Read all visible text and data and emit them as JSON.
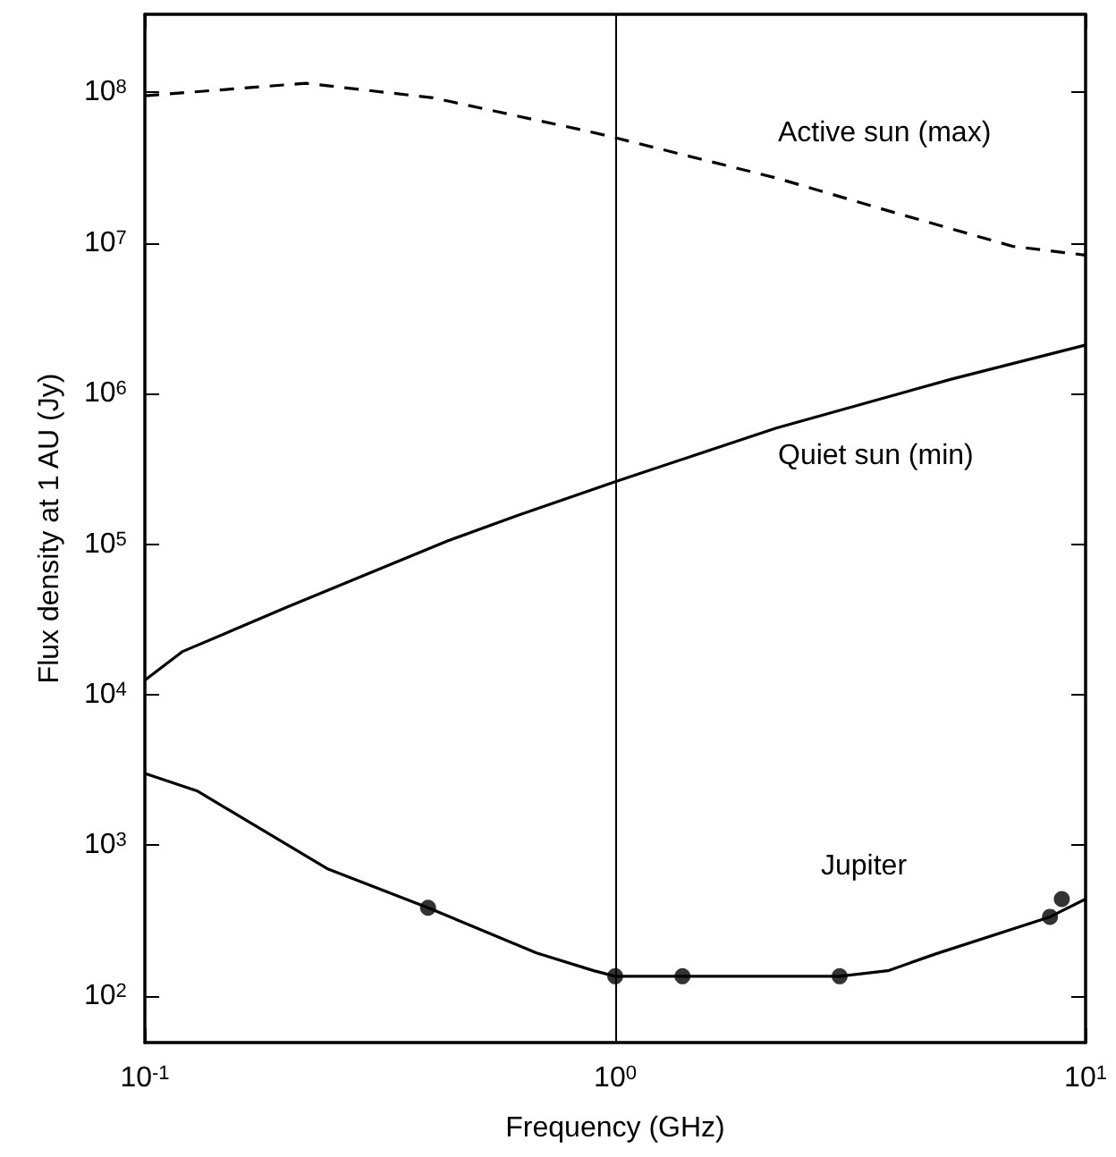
{
  "chart_data": {
    "type": "line",
    "xlabel": "Frequency (GHz)",
    "ylabel": "Flux density at 1 AU (Jy)",
    "log": "xy",
    "grid": false,
    "legend": false,
    "marker": "none",
    "xlim": [
      0.1,
      10
    ],
    "xticks": [
      {
        "value": 0.1,
        "label": "10$^{-1}$"
      },
      {
        "value": 1,
        "label": "10$^{0}$"
      },
      {
        "value": 10,
        "label": "10$^{1}$"
      }
    ],
    "ylim": [
      49,
      330000000
    ],
    "yticks": [
      {
        "value": 100,
        "label": "10$^{2}$"
      },
      {
        "value": 1000,
        "label": "10$^{3}$"
      },
      {
        "value": 10000,
        "label": "10$^{4}$"
      },
      {
        "value": 100000,
        "label": "10$^{5}$"
      },
      {
        "value": 1000000,
        "label": "10$^{6}$"
      },
      {
        "value": 10000000,
        "label": "10$^{7}$"
      },
      {
        "value": 100000000,
        "label": "10$^{8}$"
      }
    ],
    "ref_lines": [
      {
        "axis": "x",
        "value": 1,
        "color": "#000000",
        "line_style": "solid"
      }
    ],
    "series": [
      {
        "name": "Active sun (max)",
        "color": "#000000",
        "line_style": "dashed",
        "x": [
          0.1,
          0.22,
          0.41,
          0.88,
          1,
          2.2,
          3.9,
          7,
          10
        ],
        "values": [
          95000000,
          115000000,
          92000000,
          55000000,
          50000000,
          27000000,
          16000000,
          9500000,
          8300000
        ]
      },
      {
        "name": "Quiet sun (min)",
        "color": "#000000",
        "line_style": "solid",
        "x": [
          0.1,
          0.12,
          0.2,
          0.44,
          0.62,
          1,
          2.2,
          5.2,
          10
        ],
        "values": [
          12500,
          19300,
          38000,
          105000,
          155000,
          260000,
          590000,
          1250000,
          2100000
        ]
      },
      {
        "name": "Jupiter",
        "color": "#000000",
        "line_style": "solid",
        "x": [
          0.1,
          0.129,
          0.244,
          0.4,
          0.68,
          0.9,
          1,
          1.39,
          3,
          3.8,
          4.8,
          8.4,
          10
        ],
        "values": [
          3000,
          2300,
          700,
          385,
          193,
          147,
          135,
          135,
          135,
          147,
          190,
          335,
          440
        ]
      },
      {
        "type": "scatter",
        "marker": "circle",
        "color": "#000000",
        "x": [
          0.4,
          1,
          1.39,
          3,
          8.4,
          8.9
        ],
        "values": [
          385,
          135,
          135,
          135,
          335,
          440
        ]
      }
    ]
  }
}
